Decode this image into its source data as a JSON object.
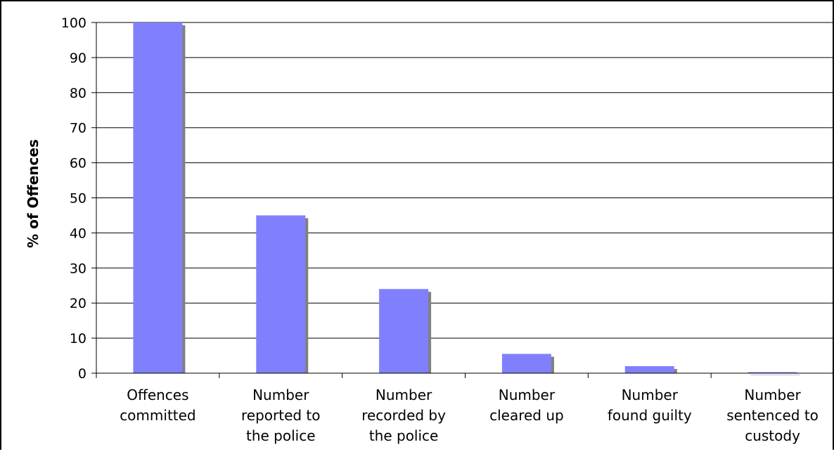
{
  "chart_data": {
    "type": "bar",
    "title": "",
    "xlabel": "",
    "ylabel": "% of Offences",
    "ylim": [
      0,
      100
    ],
    "ytick_step": 10,
    "grid": true,
    "legend": "none",
    "categories": [
      [
        "Offences",
        "committed"
      ],
      [
        "Number",
        "reported to",
        "the police"
      ],
      [
        "Number",
        "recorded by",
        "the police"
      ],
      [
        "Number",
        "cleared up"
      ],
      [
        "Number",
        "found guilty"
      ],
      [
        "Number",
        "sentenced to",
        "custody"
      ]
    ],
    "values": [
      100,
      45,
      24,
      5.5,
      2,
      0.3
    ],
    "colors": {
      "bar": "#8080ff",
      "bar_shadow": "#808080",
      "grid": "#000000"
    }
  }
}
